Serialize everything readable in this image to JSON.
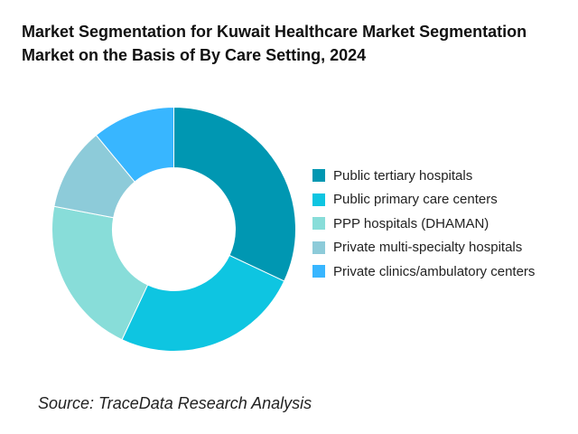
{
  "chart_data": {
    "type": "pie",
    "variant": "donut",
    "title_lines": [
      "Market Segmentation for Kuwait Healthcare Market Segmentation",
      "Market on the Basis of By Care Setting, 2024"
    ],
    "categories": [
      "Public tertiary hospitals",
      "Public primary care centers",
      "PPP hospitals (DHAMAN)",
      "Private multi-specialty hospitals",
      "Private clinics/ambulatory centers"
    ],
    "values": [
      32,
      25,
      21,
      11,
      11
    ],
    "colors": [
      "#0097b2",
      "#0ec5e1",
      "#88ddd9",
      "#8dcbd9",
      "#38b6ff"
    ],
    "legend_position": "right",
    "source": "Source: TraceData Research Analysis"
  }
}
